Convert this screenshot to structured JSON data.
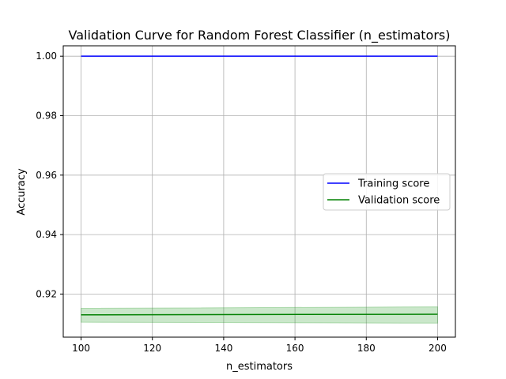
{
  "chart_data": {
    "type": "line",
    "title": "Validation Curve for Random Forest Classifier (n_estimators)",
    "xlabel": "n_estimators",
    "ylabel": "Accuracy",
    "xlim": [
      95,
      205
    ],
    "ylim": [
      0.9055,
      1.0035
    ],
    "x_ticks": [
      100,
      120,
      140,
      160,
      180,
      200
    ],
    "x_tick_labels": [
      "100",
      "120",
      "140",
      "160",
      "180",
      "200"
    ],
    "y_ticks": [
      0.92,
      0.94,
      0.96,
      0.98,
      1.0
    ],
    "y_tick_labels": [
      "0.92",
      "0.94",
      "0.96",
      "0.98",
      "1.00"
    ],
    "grid": true,
    "legend_position": "center-right",
    "series": [
      {
        "name": "Training score",
        "color": "#0000ff",
        "x": [
          100,
          200
        ],
        "y": [
          1.0,
          1.0
        ]
      },
      {
        "name": "Validation score",
        "color": "#008000",
        "x": [
          100,
          200
        ],
        "y": [
          0.913,
          0.9132
        ],
        "band_lower": [
          0.9105,
          0.9102
        ],
        "band_upper": [
          0.9152,
          0.9157
        ],
        "band_color": "#2ca02c"
      }
    ]
  }
}
